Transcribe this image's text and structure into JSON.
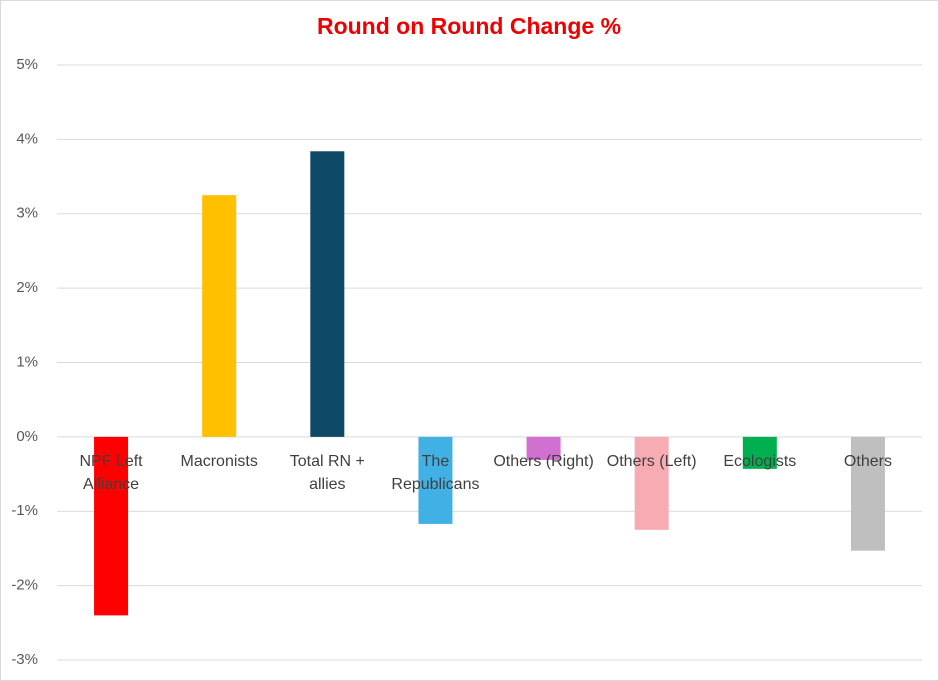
{
  "chart_data": {
    "type": "bar",
    "title": "Round on Round Change %",
    "categories": [
      "NPF Left Alliance",
      "Macronists",
      "Total RN + allies",
      "The Republicans",
      "Others (Right)",
      "Others (Left)",
      "Ecologists",
      "Others"
    ],
    "values": [
      -2.4,
      3.25,
      3.84,
      -1.17,
      -0.31,
      -1.25,
      -0.43,
      -1.53
    ],
    "colors": [
      "#ff0000",
      "#ffc000",
      "#0e4a66",
      "#41b0e4",
      "#d070d0",
      "#f7acb4",
      "#00b050",
      "#bfbfbf"
    ],
    "ylim": [
      -3,
      5
    ],
    "yticks": [
      {
        "value": -3,
        "label": "-3%"
      },
      {
        "value": -2,
        "label": "-2%"
      },
      {
        "value": -1,
        "label": "-1%"
      },
      {
        "value": 0,
        "label": "0%"
      },
      {
        "value": 1,
        "label": "1%"
      },
      {
        "value": 2,
        "label": "2%"
      },
      {
        "value": 3,
        "label": "3%"
      },
      {
        "value": 4,
        "label": "4%"
      },
      {
        "value": 5,
        "label": "5%"
      }
    ],
    "grid": true
  }
}
